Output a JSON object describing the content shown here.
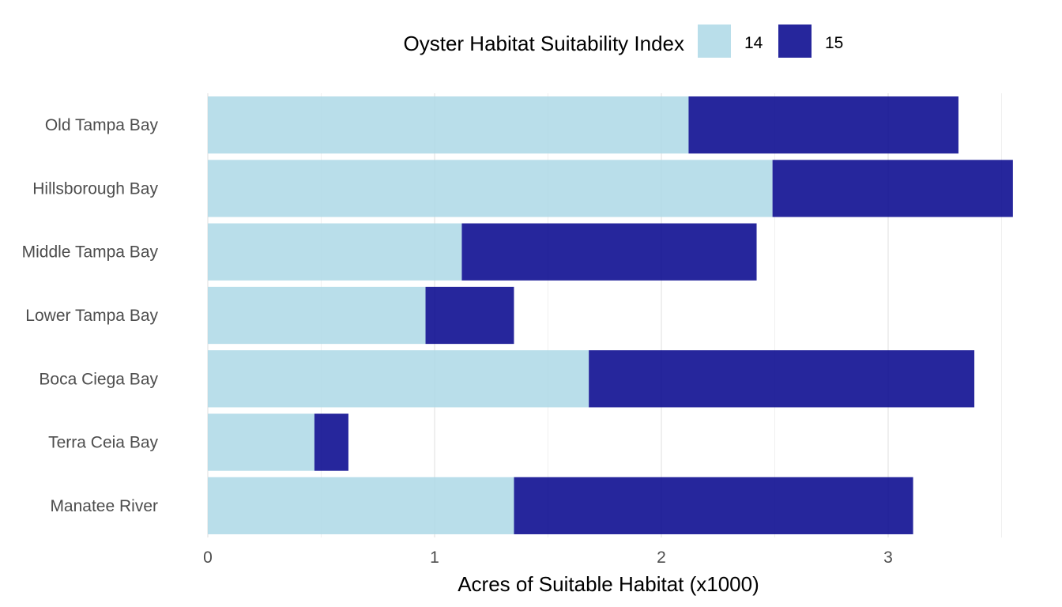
{
  "chart_data": {
    "type": "bar",
    "orientation": "horizontal",
    "stacked": true,
    "title": "",
    "xlabel": "Acres of Suitable Habitat (x1000)",
    "ylabel": "",
    "xlim": [
      0,
      3.55
    ],
    "xticks": [
      0,
      1,
      2,
      3
    ],
    "xtick_labels": [
      "0",
      "1",
      "2",
      "3"
    ],
    "grid": true,
    "legend": {
      "title": "Oyster Habitat Suitability Index",
      "position": "top"
    },
    "categories": [
      "Old Tampa Bay",
      "Hillsborough Bay",
      "Middle Tampa Bay",
      "Lower Tampa Bay",
      "Boca Ciega Bay",
      "Terra Ceia Bay",
      "Manatee River"
    ],
    "series": [
      {
        "name": "14",
        "color": "#ADD8E6",
        "values": [
          2.12,
          2.49,
          1.12,
          0.96,
          1.68,
          0.47,
          1.35
        ]
      },
      {
        "name": "15",
        "color": "#00008B",
        "values": [
          1.19,
          1.06,
          1.3,
          0.39,
          1.7,
          0.15,
          1.76
        ]
      }
    ]
  }
}
